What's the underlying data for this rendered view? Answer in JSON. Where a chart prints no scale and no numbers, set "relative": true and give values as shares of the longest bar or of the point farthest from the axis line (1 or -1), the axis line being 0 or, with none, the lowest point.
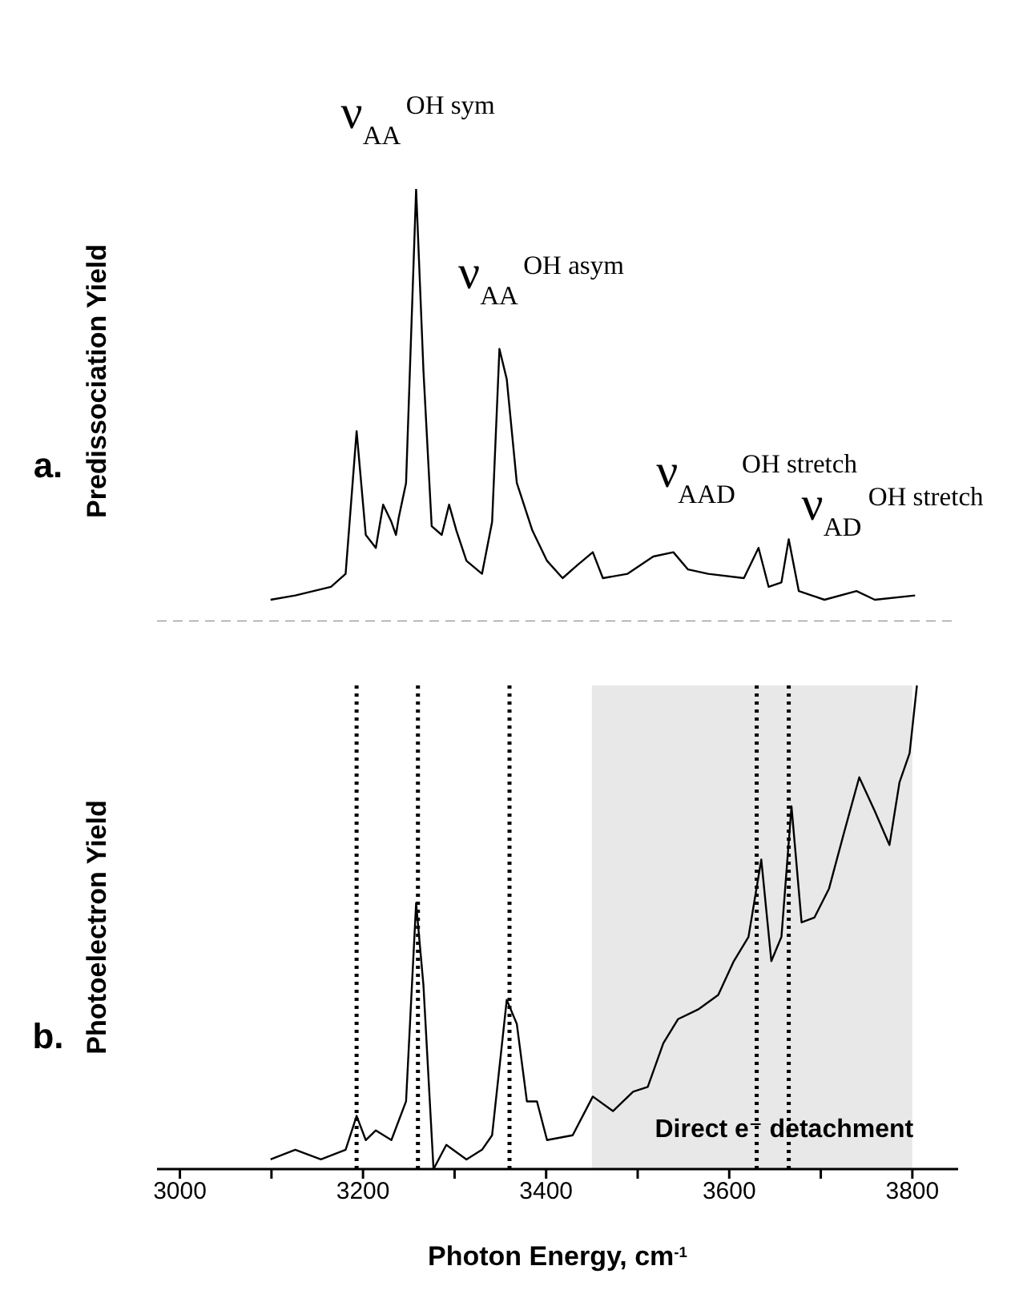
{
  "chart_data": [
    {
      "type": "line",
      "relative": true,
      "ylabel": "Predissociation Yield",
      "xlim": [
        2975,
        3850
      ],
      "tick_labels": false,
      "marker": "none",
      "line_style": "solid",
      "annotations": [
        "a.",
        {
          "text": "ν$_{AA}$$^{OH sym}$",
          "x": 3260,
          "y": 1
        },
        {
          "text": "ν$_{AA}$$^{OH asym}$",
          "x": 3349,
          "y": 0.63
        },
        {
          "text": "ν$_{AAD}$$^{OH stretch}$",
          "x": 3630,
          "y": 0.17
        },
        {
          "text": "ν$_{AD}$$^{OH stretch}$",
          "x": 3665,
          "y": 0.19
        }
      ],
      "ref_lines": [
        {
          "axis": "y",
          "value": 0,
          "line_style": "dashed",
          "color": "#808080"
        }
      ],
      "series": [
        {
          "color": "#000000",
          "x": [
            3099,
            3126,
            3165,
            3181,
            3193,
            3203,
            3214,
            3222,
            3231,
            3236,
            3239,
            3247,
            3258,
            3266,
            3275,
            3286,
            3294,
            3302,
            3313,
            3330,
            3341,
            3349,
            3357,
            3368,
            3385,
            3401,
            3418,
            3434,
            3451,
            3462,
            3489,
            3517,
            3539,
            3555,
            3577,
            3616,
            3632,
            3643,
            3657,
            3665,
            3676,
            3704,
            3739,
            3759,
            3803
          ],
          "values": [
            0.05,
            0.06,
            0.08,
            0.11,
            0.44,
            0.2,
            0.17,
            0.27,
            0.23,
            0.2,
            0.24,
            0.32,
            1,
            0.58,
            0.22,
            0.2,
            0.27,
            0.21,
            0.14,
            0.11,
            0.23,
            0.63,
            0.56,
            0.32,
            0.21,
            0.14,
            0.1,
            0.13,
            0.16,
            0.1,
            0.11,
            0.15,
            0.16,
            0.12,
            0.11,
            0.1,
            0.17,
            0.08,
            0.09,
            0.19,
            0.07,
            0.05,
            0.07,
            0.05,
            0.06
          ]
        }
      ]
    },
    {
      "type": "line",
      "relative": true,
      "ylabel": "Photoelectron Yield",
      "xlabel": "Photon Energy, cm$^{-1}$",
      "xlim": [
        2975,
        3850
      ],
      "xticks": [
        3000,
        {
          "value": 3100,
          "label": null
        },
        3200,
        {
          "value": 3300,
          "label": null
        },
        3400,
        {
          "value": 3500,
          "label": null
        },
        3600,
        {
          "value": 3700,
          "label": null
        },
        3800
      ],
      "tick_labels": "x",
      "marker": "none",
      "line_style": "solid",
      "annotations": [
        "b."
      ],
      "ref_lines": [
        {
          "axis": "x",
          "value": 3193,
          "line_style": "dotted",
          "color": "#000000"
        },
        {
          "axis": "x",
          "value": 3260,
          "line_style": "dotted",
          "color": "#000000"
        },
        {
          "axis": "x",
          "value": 3360,
          "line_style": "dotted",
          "color": "#000000"
        },
        {
          "axis": "x",
          "value": 3630,
          "line_style": "dotted",
          "color": "#000000"
        },
        {
          "axis": "x",
          "value": 3665,
          "line_style": "dotted",
          "color": "#000000"
        }
      ],
      "bands": [
        {
          "axis": "x",
          "from": 3450,
          "to": 3800,
          "label": "Direct e⁻ detachment",
          "color": "#d9d9d9"
        }
      ],
      "series": [
        {
          "color": "#000000",
          "x": [
            3099,
            3126,
            3154,
            3181,
            3193,
            3203,
            3214,
            3231,
            3247,
            3258,
            3266,
            3277,
            3291,
            3313,
            3330,
            3341,
            3357,
            3368,
            3379,
            3390,
            3401,
            3429,
            3451,
            3473,
            3495,
            3511,
            3528,
            3544,
            3566,
            3588,
            3605,
            3621,
            3635,
            3646,
            3657,
            3668,
            3679,
            3693,
            3709,
            3726,
            3742,
            3759,
            3775,
            3786,
            3797,
            3805
          ],
          "values": [
            0.02,
            0.04,
            0.02,
            0.04,
            0.11,
            0.06,
            0.08,
            0.06,
            0.14,
            0.55,
            0.38,
            0,
            0.05,
            0.02,
            0.04,
            0.07,
            0.35,
            0.3,
            0.14,
            0.14,
            0.06,
            0.07,
            0.15,
            0.12,
            0.16,
            0.17,
            0.26,
            0.31,
            0.33,
            0.36,
            0.43,
            0.48,
            0.64,
            0.43,
            0.48,
            0.75,
            0.51,
            0.52,
            0.58,
            0.7,
            0.81,
            0.74,
            0.67,
            0.8,
            0.86,
            1
          ]
        }
      ]
    }
  ]
}
